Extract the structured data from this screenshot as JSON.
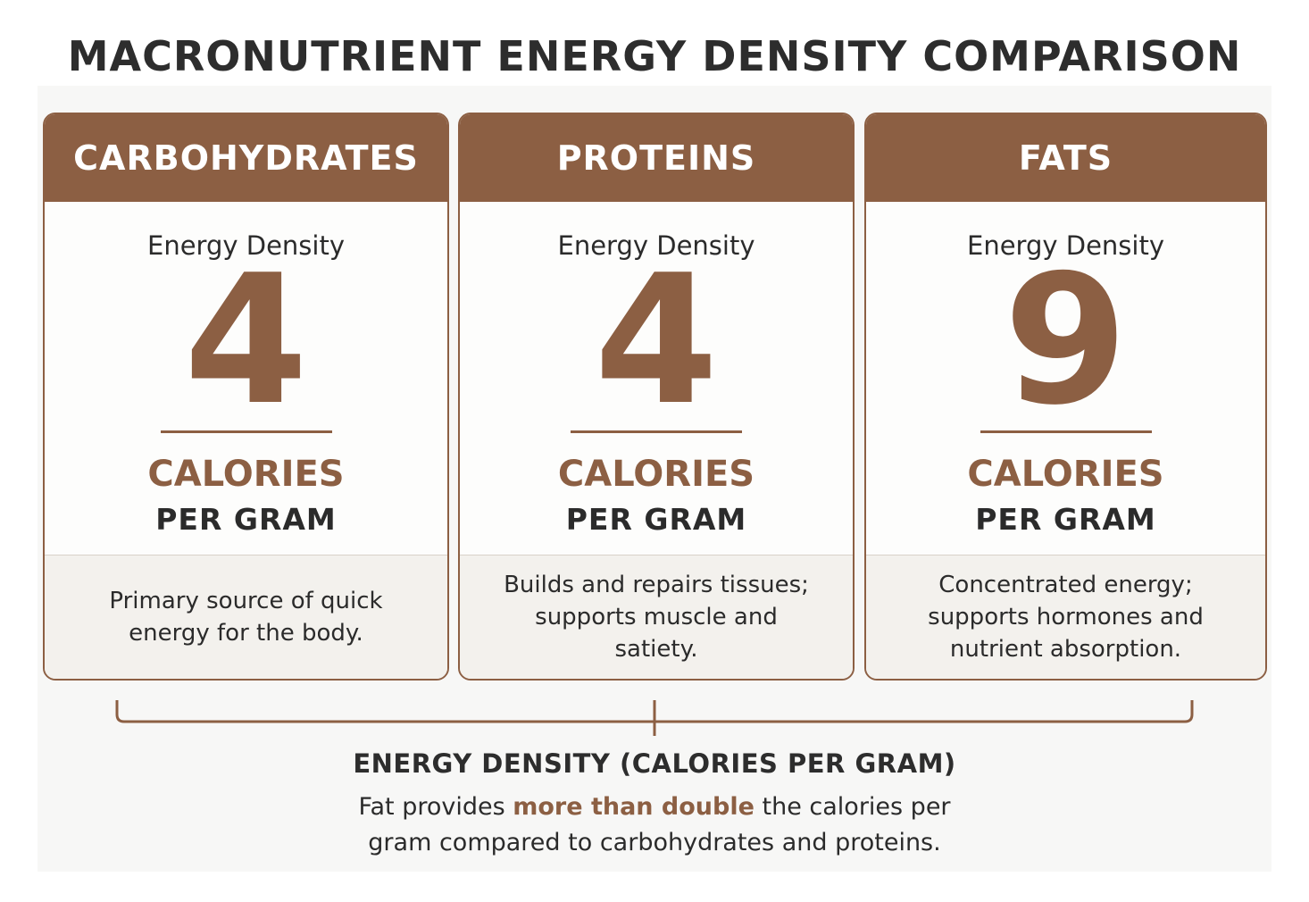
{
  "title": "MACRONUTRIENT ENERGY DENSITY COMPARISON",
  "cards": [
    {
      "name": "CARBOHYDRATES",
      "density_label": "Energy Density",
      "value": "4",
      "unit_line1": "CALORIES",
      "unit_line2": "PER GRAM",
      "description": "Primary source of quick energy for the body."
    },
    {
      "name": "PROTEINS",
      "density_label": "Energy Density",
      "value": "4",
      "unit_line1": "CALORIES",
      "unit_line2": "PER GRAM",
      "description": "Builds and repairs tissues; supports muscle and satiety."
    },
    {
      "name": "FATS",
      "density_label": "Energy Density",
      "value": "9",
      "unit_line1": "CALORIES",
      "unit_line2": "PER GRAM",
      "description": "Concentrated energy; supports hormones and nutrient absorption."
    }
  ],
  "summary": {
    "heading": "ENERGY DENSITY (CALORIES PER GRAM)",
    "text_before": "Fat provides ",
    "text_highlight": "more than double",
    "text_after": " the calories per gram compared to carbohydrates and proteins."
  },
  "colors": {
    "accent": "#8c5f43",
    "text": "#2b2b2b",
    "footer_bg": "#f3f1ed"
  }
}
